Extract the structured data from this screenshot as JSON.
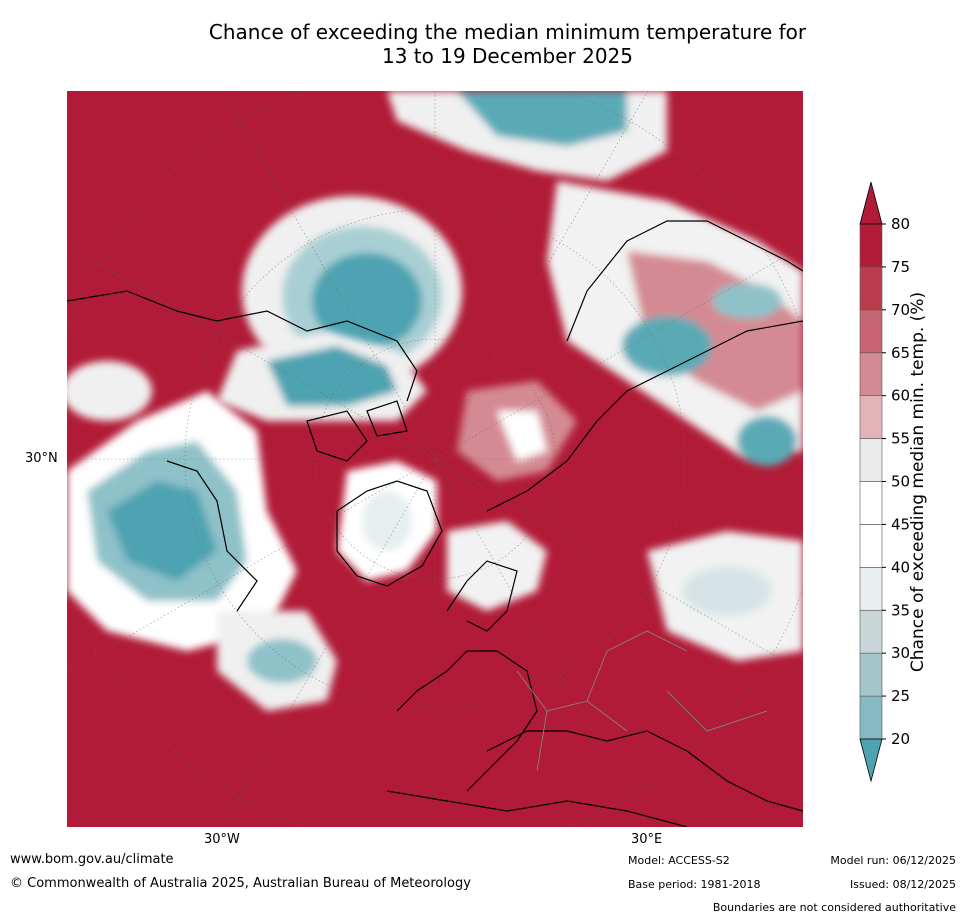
{
  "title_line1": "Chance of exceeding the median minimum temperature for",
  "title_line2": "13 to 19 December 2025",
  "axis": {
    "lat_label": "30°N",
    "lon_west": "30°W",
    "lon_east": "30°E"
  },
  "colorbar": {
    "title": "Chance of exceeding median min. temp. (%)",
    "ticks": [
      "20",
      "25",
      "30",
      "35",
      "40",
      "45",
      "50",
      "55",
      "60",
      "65",
      "70",
      "75",
      "80"
    ],
    "colors": [
      "#67a8b6",
      "#86b9c3",
      "#a4c6cb",
      "#c9d6d8",
      "#e9eff1",
      "#ffffff",
      "#ffffff",
      "#ebebeb",
      "#e2b4b9",
      "#d48a92",
      "#c76672",
      "#ba3d4d",
      "#b11b37"
    ],
    "low_color": "#4ea3b1",
    "high_color": "#b11b37"
  },
  "footer": {
    "url": "www.bom.gov.au/climate",
    "copyright": "© Commonwealth of Australia 2025, Australian Bureau of Meteorology",
    "model": "Model: ACCESS-S2",
    "base_period": "Base period: 1981-2018",
    "model_run": "Model run: 06/12/2025",
    "issued": "Issued: 08/12/2025",
    "boundaries": "Boundaries are not considered authoritative"
  },
  "colors": {
    "warm": "#b11b37",
    "warm_mid": "#d48a92",
    "neutral": "#f2f2f2",
    "cool": "#4ea3b1",
    "cool_light": "#a9cfd4"
  }
}
